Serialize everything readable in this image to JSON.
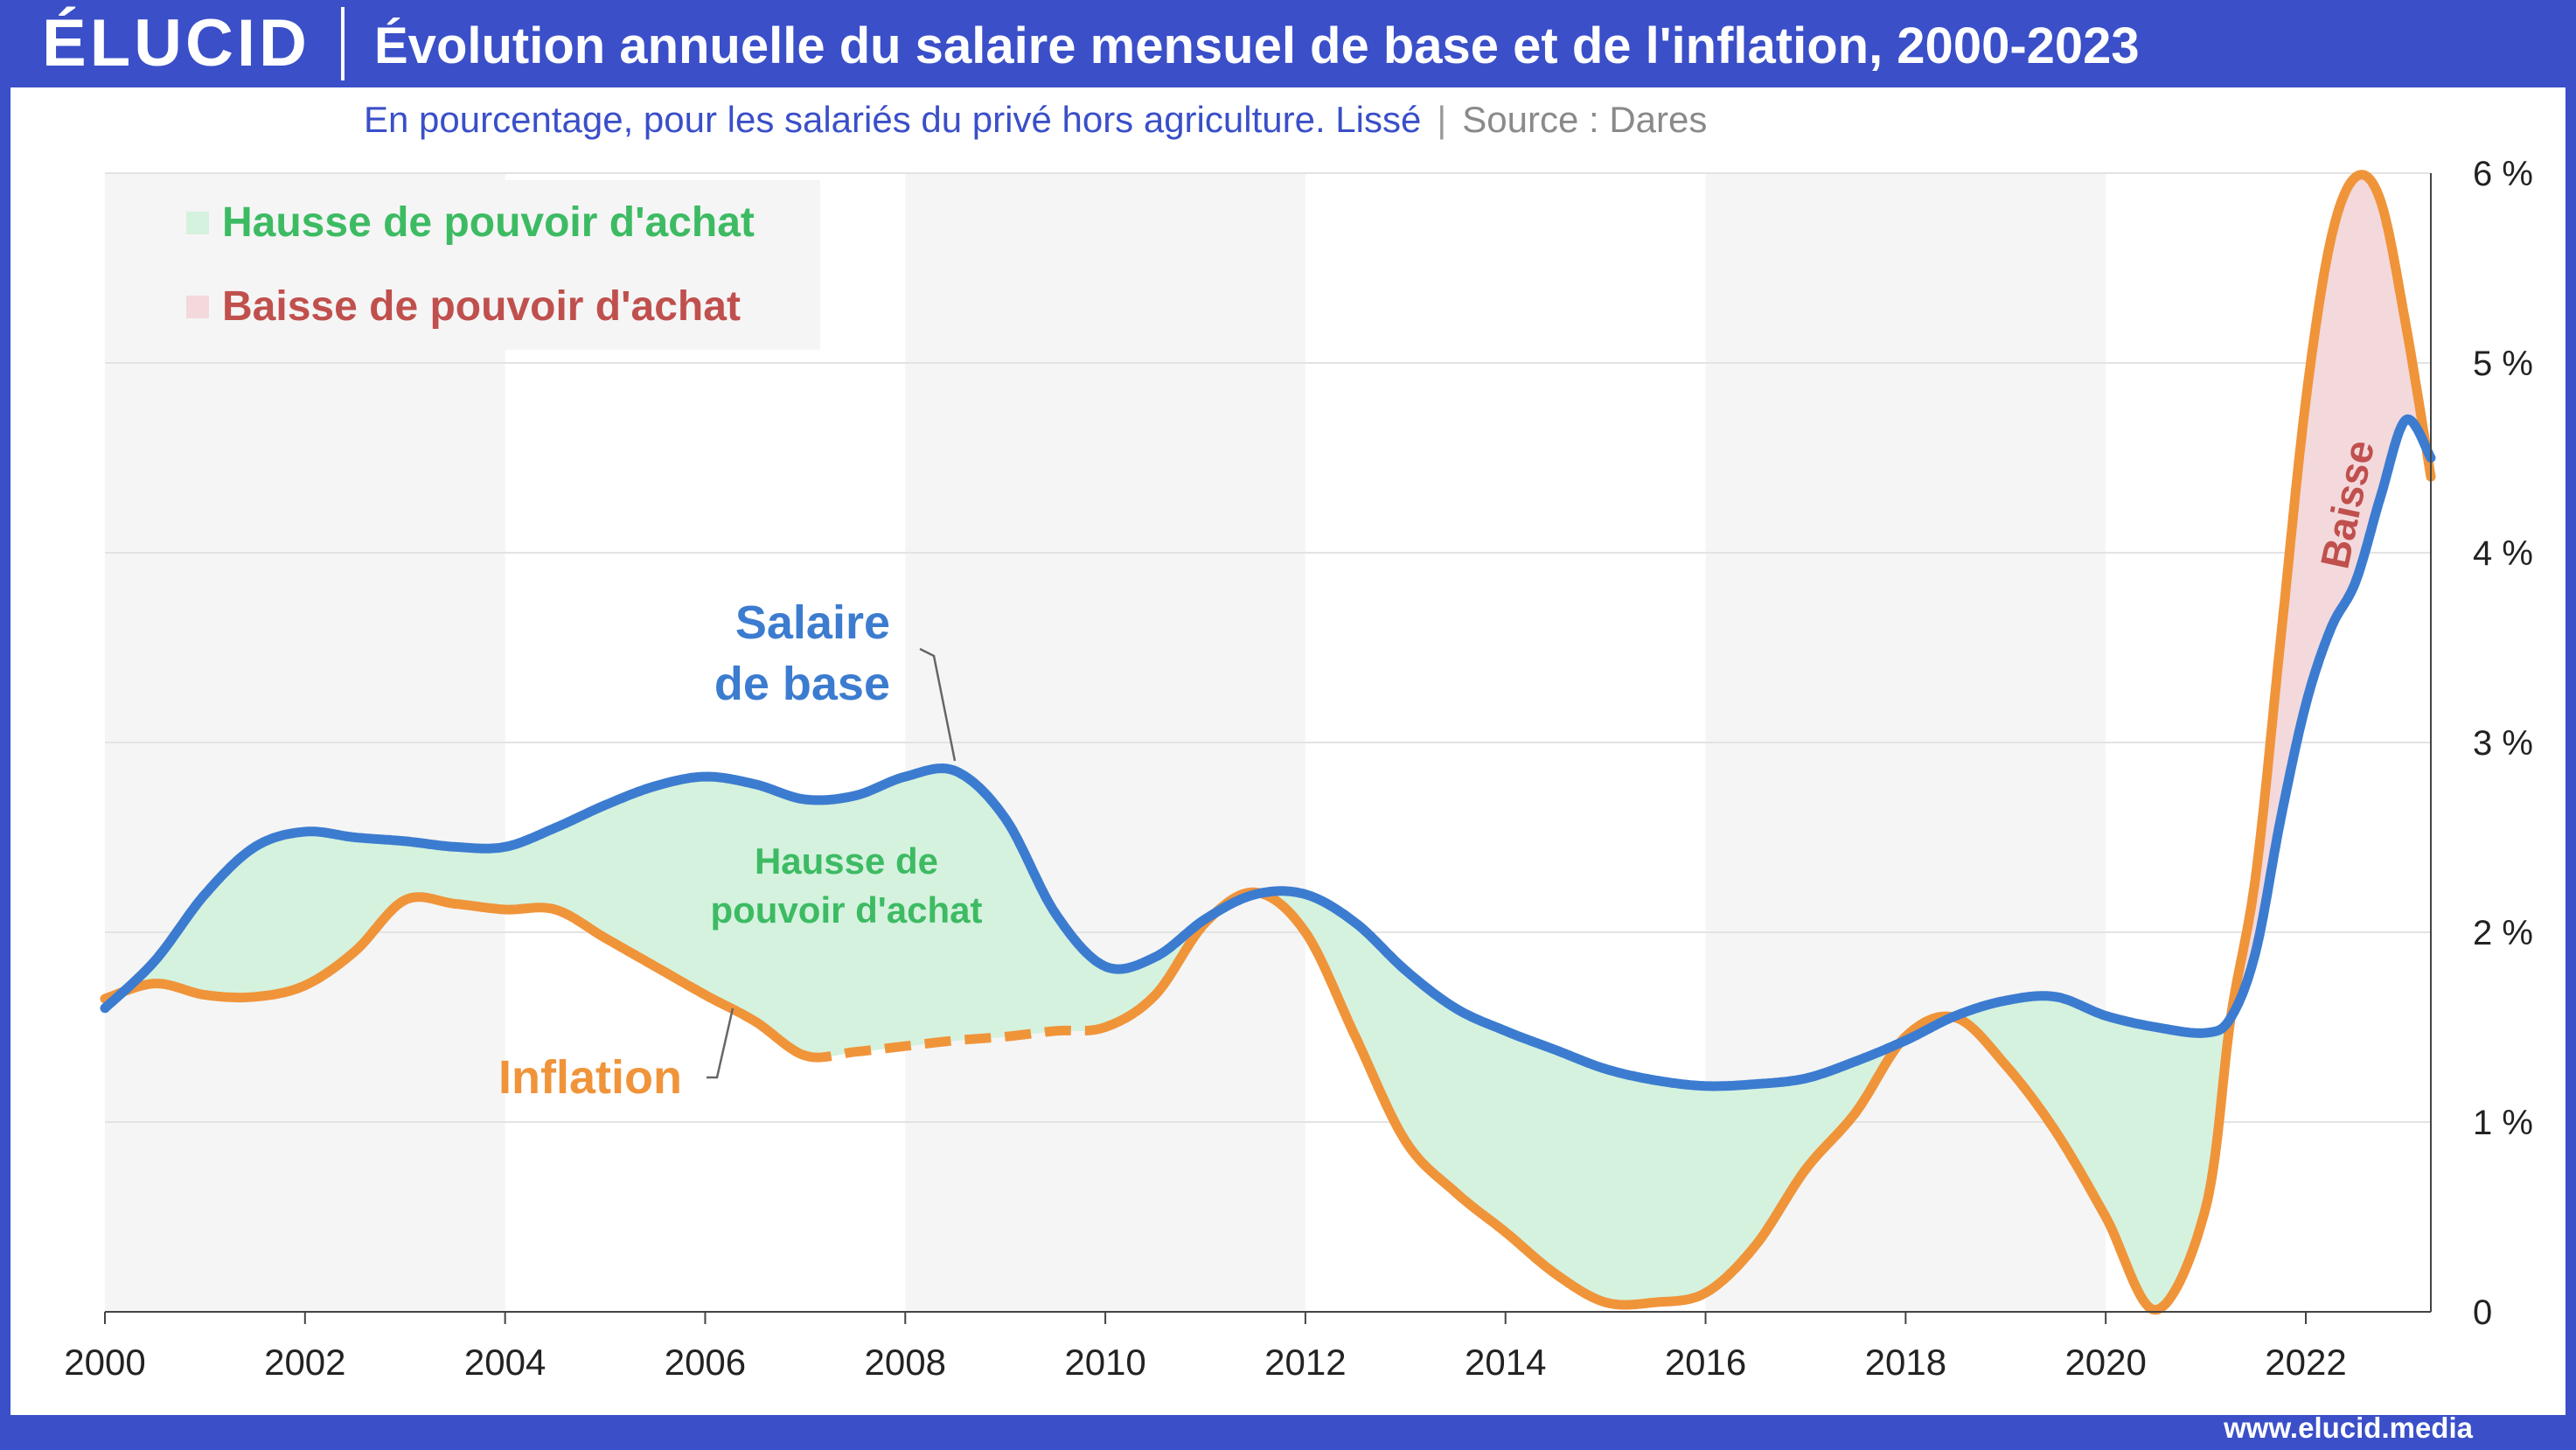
{
  "brand": "ÉLUCID",
  "title": "Évolution annuelle du salaire mensuel de base et de l'inflation, 2000-2023",
  "subtitle": "En pourcentage, pour les salariés du privé hors agriculture. Lissé",
  "separator": "|",
  "source": "Source : Dares",
  "footer_url": "www.elucid.media",
  "colors": {
    "brand_blue": "#3a4fc8",
    "salaire": "#3c7cd0",
    "inflation": "#f0943a",
    "hausse_fill": "#d5f2de",
    "baisse_fill": "#f3d9dc",
    "hausse_text": "#3dbb63",
    "baisse_text": "#c0504d"
  },
  "legend": {
    "hausse": "Hausse de pouvoir d'achat",
    "baisse": "Baisse de pouvoir d'achat"
  },
  "annotations": {
    "salaire_line1": "Salaire",
    "salaire_line2": "de base",
    "inflation": "Inflation",
    "hausse_line1": "Hausse de",
    "hausse_line2": "pouvoir d'achat",
    "baisse": "Baisse"
  },
  "chart_data": {
    "type": "line",
    "xlim": [
      2000,
      2023.25
    ],
    "ylim": [
      0,
      6
    ],
    "x_ticks": [
      "2000",
      "2002",
      "2004",
      "2006",
      "2008",
      "2010",
      "2012",
      "2014",
      "2016",
      "2018",
      "2020",
      "2022"
    ],
    "y_ticks": [
      "0",
      "1 %",
      "2 %",
      "3 %",
      "4 %",
      "5 %",
      "6 %"
    ],
    "grid": true,
    "legend_position": "top-left",
    "series": [
      {
        "name": "Salaire de base",
        "x": [
          2000,
          2000.5,
          2001,
          2001.5,
          2002,
          2002.5,
          2003,
          2003.5,
          2004,
          2004.5,
          2005,
          2005.5,
          2006,
          2006.5,
          2007,
          2007.5,
          2008,
          2008.5,
          2009,
          2009.5,
          2010,
          2010.5,
          2011,
          2011.5,
          2012,
          2012.5,
          2013,
          2013.5,
          2014,
          2014.5,
          2015,
          2015.5,
          2016,
          2016.5,
          2017,
          2017.5,
          2018,
          2018.5,
          2019,
          2019.5,
          2020,
          2020.5,
          2021,
          2021.25,
          2021.5,
          2021.75,
          2022,
          2022.25,
          2022.5,
          2022.75,
          2023,
          2023.25
        ],
        "y": [
          1.6,
          1.85,
          2.2,
          2.45,
          2.53,
          2.5,
          2.48,
          2.45,
          2.45,
          2.55,
          2.67,
          2.77,
          2.82,
          2.78,
          2.7,
          2.72,
          2.82,
          2.85,
          2.6,
          2.1,
          1.82,
          1.87,
          2.07,
          2.2,
          2.2,
          2.05,
          1.8,
          1.6,
          1.48,
          1.38,
          1.28,
          1.22,
          1.19,
          1.2,
          1.23,
          1.32,
          1.43,
          1.56,
          1.64,
          1.66,
          1.56,
          1.5,
          1.47,
          1.55,
          1.9,
          2.6,
          3.2,
          3.6,
          3.85,
          4.3,
          4.7,
          4.5
        ]
      },
      {
        "name": "Inflation",
        "x": [
          2000,
          2000.5,
          2001,
          2001.5,
          2002,
          2002.5,
          2003,
          2003.5,
          2004,
          2004.5,
          2005,
          2005.5,
          2006,
          2006.5,
          2007,
          2007.5,
          2008,
          2008.5,
          2009,
          2009.5,
          2010,
          2010.5,
          2011,
          2011.5,
          2012,
          2012.5,
          2013,
          2013.5,
          2014,
          2014.5,
          2015,
          2015.5,
          2016,
          2016.5,
          2017,
          2017.5,
          2018,
          2018.5,
          2019,
          2019.5,
          2020,
          2020.5,
          2021,
          2021.25,
          2021.5,
          2021.75,
          2022,
          2022.25,
          2022.5,
          2022.75,
          2023,
          2023.25
        ],
        "y": [
          1.65,
          1.73,
          1.67,
          1.66,
          1.72,
          1.9,
          2.17,
          2.15,
          2.12,
          2.12,
          1.97,
          1.82,
          1.67,
          1.53,
          1.35,
          1.37,
          1.4,
          1.43,
          1.45,
          1.48,
          1.5,
          1.67,
          2.05,
          2.21,
          2.0,
          1.45,
          0.9,
          0.63,
          0.42,
          0.2,
          0.05,
          0.05,
          0.1,
          0.35,
          0.75,
          1.05,
          1.45,
          1.55,
          1.3,
          0.95,
          0.5,
          0.01,
          0.55,
          1.55,
          2.3,
          3.55,
          4.8,
          5.65,
          5.98,
          5.85,
          5.2,
          4.4
        ]
      }
    ],
    "inflation_dashed_interval": [
      2007,
      2010
    ]
  }
}
